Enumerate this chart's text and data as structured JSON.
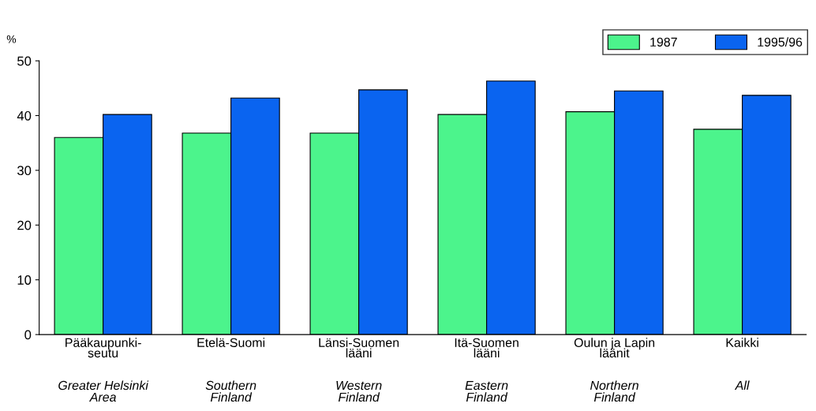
{
  "chart_data": {
    "type": "bar",
    "ylabel": "%",
    "categories": [
      "Pääkaupunki-\nseutu\n\nGreater Helsinki\nArea",
      "Etelä-Suomi\n\n\nSouthern\nFinland",
      "Länsi-Suomen\nlääni\n\nWestern\nFinland",
      "Itä-Suomen\nlääni\n\nEastern\nFinland",
      "Oulun ja Lapin\nläänit\n\nNorthern\nFinland",
      "Kaikki\n\n\nAll"
    ],
    "series": [
      {
        "name": "1987",
        "color": "#4cf48c",
        "values": [
          36.0,
          36.8,
          36.8,
          40.2,
          40.7,
          37.5
        ]
      },
      {
        "name": "1995/96",
        "color": "#0a64f0",
        "values": [
          40.2,
          43.2,
          44.7,
          46.3,
          44.5,
          43.7
        ]
      }
    ],
    "ylim": [
      0,
      50
    ],
    "yticks": [
      0,
      10,
      20,
      30,
      40,
      50
    ],
    "grid": false,
    "legend": "top right"
  }
}
